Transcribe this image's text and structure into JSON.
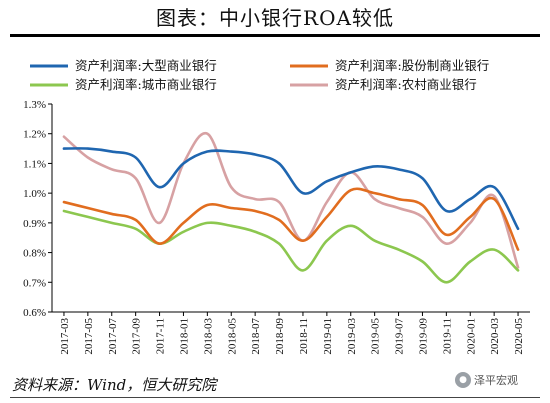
{
  "page": {
    "title": "图表：中小银行ROA较低",
    "source": "资料来源：Wind，恒大研究院",
    "watermark": "泽平宏观"
  },
  "chart_data": {
    "type": "line",
    "x": [
      "2017-03",
      "2017-05",
      "2017-07",
      "2017-09",
      "2017-11",
      "2018-01",
      "2018-03",
      "2018-05",
      "2018-07",
      "2018-09",
      "2018-11",
      "2019-01",
      "2019-03",
      "2019-05",
      "2019-07",
      "2019-09",
      "2019-11",
      "2020-01",
      "2020-03",
      "2020-05"
    ],
    "ylim": [
      0.6,
      1.3
    ],
    "yticks": [
      "0.6%",
      "0.7%",
      "0.8%",
      "0.9%",
      "1.0%",
      "1.1%",
      "1.2%",
      "1.3%"
    ],
    "y_unit": "%",
    "grid": false,
    "legend": "top",
    "series": [
      {
        "name": "资产利润率:大型商业银行",
        "color": "#1f66b0",
        "values": [
          1.15,
          1.15,
          1.14,
          1.12,
          1.02,
          1.1,
          1.14,
          1.14,
          1.13,
          1.1,
          1.0,
          1.04,
          1.07,
          1.09,
          1.08,
          1.05,
          0.94,
          0.98,
          1.02,
          0.88
        ]
      },
      {
        "name": "资产利润率:股份制商业银行",
        "color": "#e16d1f",
        "values": [
          0.97,
          0.95,
          0.93,
          0.91,
          0.83,
          0.9,
          0.96,
          0.95,
          0.94,
          0.91,
          0.84,
          0.92,
          1.01,
          1.0,
          0.98,
          0.96,
          0.86,
          0.92,
          0.98,
          0.81
        ]
      },
      {
        "name": "资产利润率:城市商业银行",
        "color": "#8cc74f",
        "values": [
          0.94,
          0.92,
          0.9,
          0.88,
          0.83,
          0.87,
          0.9,
          0.89,
          0.87,
          0.83,
          0.74,
          0.84,
          0.89,
          0.84,
          0.81,
          0.77,
          0.7,
          0.77,
          0.81,
          0.74
        ]
      },
      {
        "name": "资产利润率:农村商业银行",
        "color": "#d7a1a3",
        "values": [
          1.19,
          1.12,
          1.08,
          1.05,
          0.9,
          1.1,
          1.2,
          1.02,
          0.98,
          0.97,
          0.84,
          0.97,
          1.07,
          0.98,
          0.95,
          0.92,
          0.83,
          0.9,
          0.99,
          0.75
        ]
      }
    ]
  }
}
